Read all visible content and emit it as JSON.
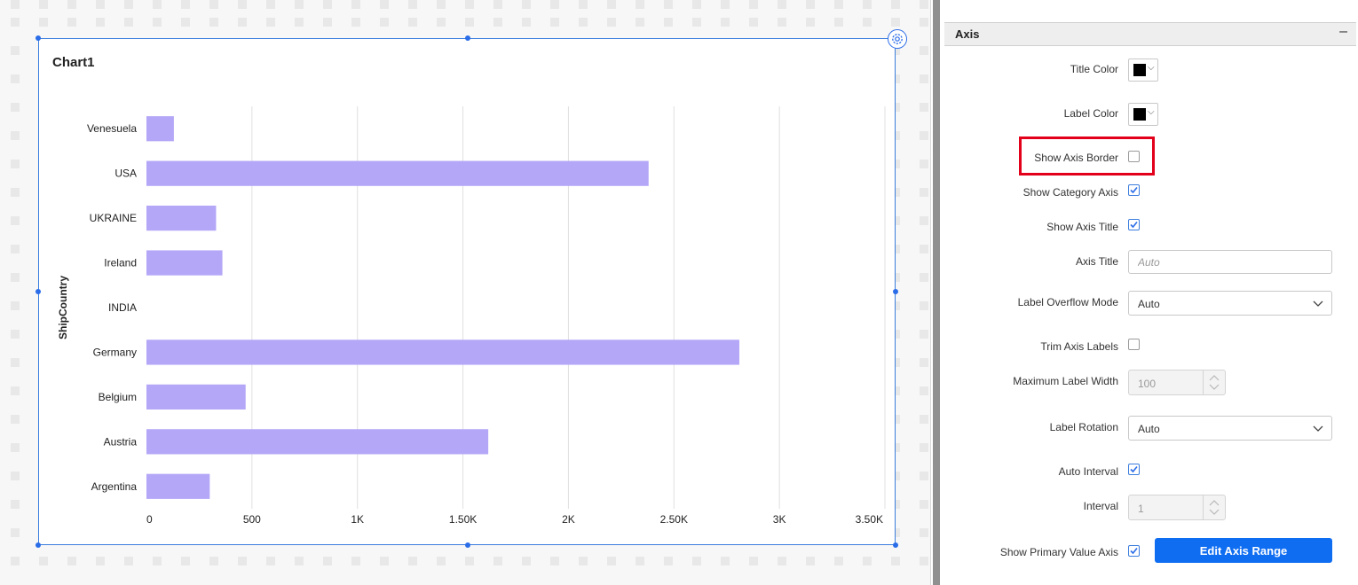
{
  "chart": {
    "title": "Chart1",
    "axis_title": "ShipCountry"
  },
  "chart_data": {
    "type": "bar",
    "orientation": "horizontal",
    "categories": [
      "Venesuela",
      "USA",
      "UKRAINE",
      "Ireland",
      "INDIA",
      "Germany",
      "Belgium",
      "Austria",
      "Argentina"
    ],
    "values": [
      130,
      2380,
      330,
      360,
      0,
      2810,
      470,
      1620,
      300
    ],
    "xlim": [
      0,
      3500
    ],
    "x_ticks": [
      "0",
      "500",
      "1K",
      "1.50K",
      "2K",
      "2.50K",
      "3K",
      "3.50K"
    ],
    "ylabel": "ShipCountry",
    "xlabel": "",
    "grid": true,
    "bar_color": "#b4a7f8"
  },
  "panel": {
    "section_title": "Axis",
    "collapse_symbol": "–",
    "title_color": {
      "label": "Title Color",
      "value": "#000000"
    },
    "label_color": {
      "label": "Label Color",
      "value": "#000000"
    },
    "show_axis_border": {
      "label": "Show Axis Border",
      "checked": false
    },
    "show_category_axis": {
      "label": "Show Category Axis",
      "checked": true
    },
    "show_axis_title": {
      "label": "Show Axis Title",
      "checked": true
    },
    "axis_title": {
      "label": "Axis Title",
      "value": "",
      "placeholder": "Auto"
    },
    "label_overflow_mode": {
      "label": "Label Overflow Mode",
      "value": "Auto"
    },
    "trim_axis_labels": {
      "label": "Trim Axis Labels",
      "checked": false
    },
    "maximum_label_width": {
      "label": "Maximum Label Width",
      "value": "100"
    },
    "label_rotation": {
      "label": "Label Rotation",
      "value": "Auto"
    },
    "auto_interval": {
      "label": "Auto Interval",
      "checked": true
    },
    "interval": {
      "label": "Interval",
      "value": "1"
    },
    "show_primary_value_axis": {
      "label": "Show Primary Value Axis",
      "checked": true
    },
    "edit_axis_range_label": "Edit Axis Range"
  },
  "colors": {
    "accent": "#0f6df2",
    "highlight": "#e3001b",
    "selection": "#3b7ddd"
  }
}
